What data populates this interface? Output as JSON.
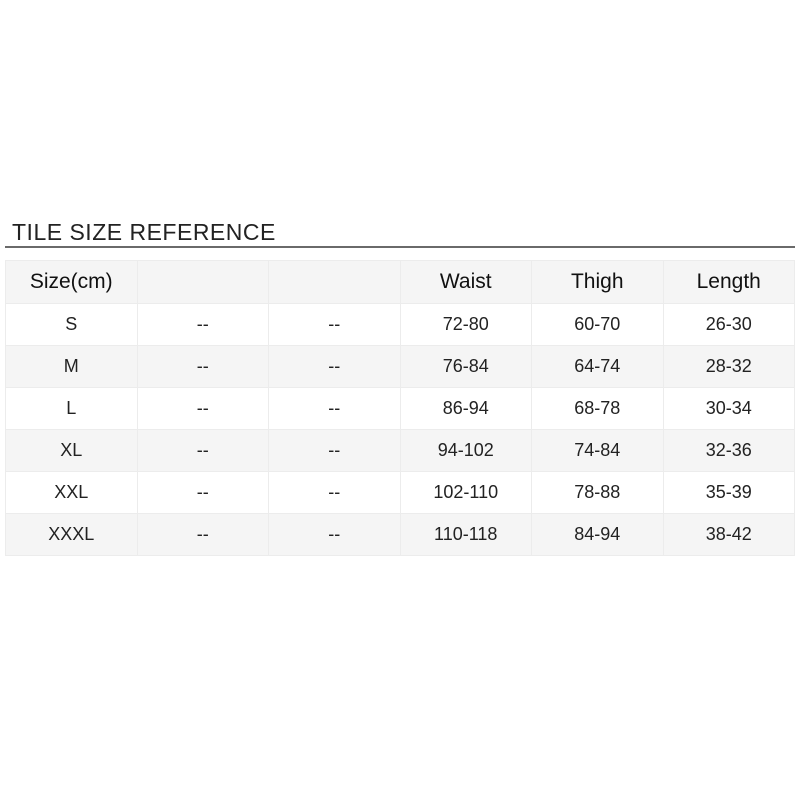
{
  "title": "TILE SIZE REFERENCE",
  "table": {
    "headers": [
      "Size(cm)",
      "",
      "",
      "Waist",
      "Thigh",
      "Length"
    ],
    "rows": [
      [
        "S",
        "--",
        "--",
        "72-80",
        "60-70",
        "26-30"
      ],
      [
        "M",
        "--",
        "--",
        "76-84",
        "64-74",
        "28-32"
      ],
      [
        "L",
        "--",
        "--",
        "86-94",
        "68-78",
        "30-34"
      ],
      [
        "XL",
        "--",
        "--",
        "94-102",
        "74-84",
        "32-36"
      ],
      [
        "XXL",
        "--",
        "--",
        "102-110",
        "78-88",
        "35-39"
      ],
      [
        "XXXL",
        "--",
        "--",
        "110-118",
        "84-94",
        "38-42"
      ]
    ]
  }
}
